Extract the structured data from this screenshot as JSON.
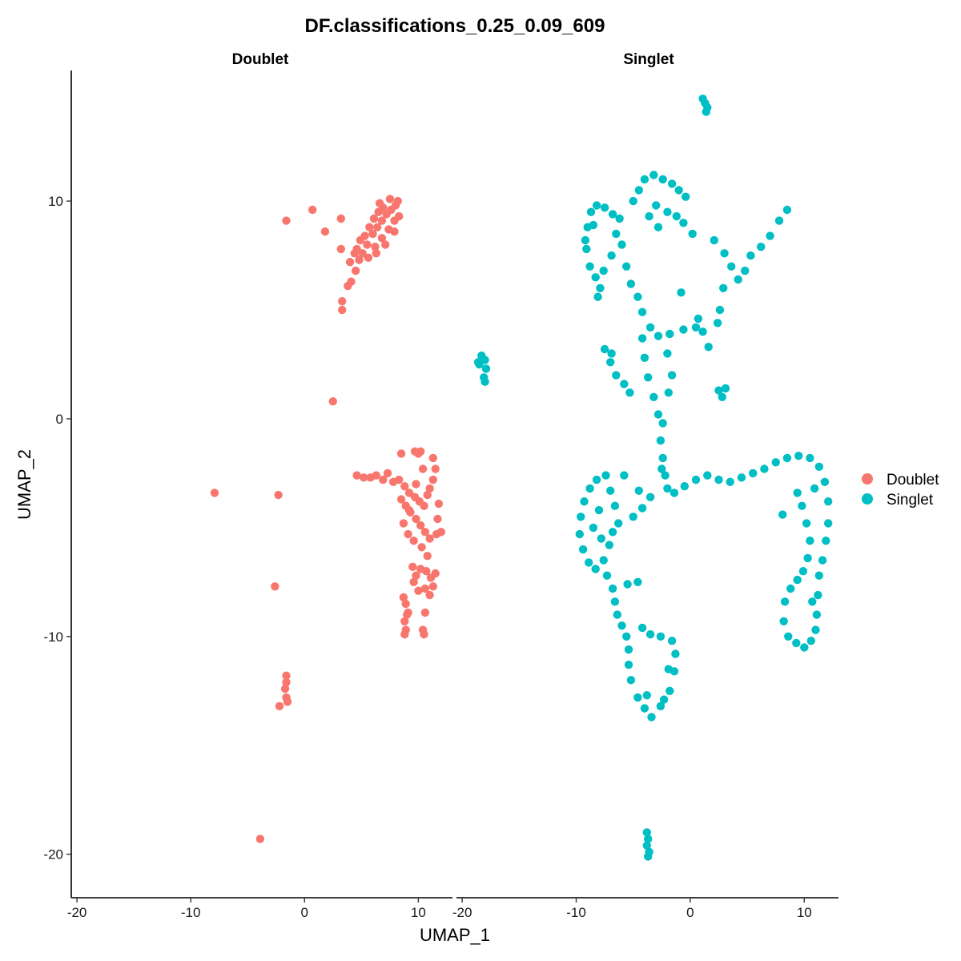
{
  "chart_data": {
    "type": "scatter",
    "title": "DF.classifications_0.25_0.09_609",
    "xlabel": "UMAP_1",
    "ylabel": "UMAP_2",
    "xlim": [
      -20.5,
      13
    ],
    "ylim": [
      -22,
      16
    ],
    "x_ticks": [
      -20,
      -10,
      0,
      10
    ],
    "y_ticks": [
      -20,
      -10,
      0,
      10
    ],
    "x_tick_labels": [
      "-20",
      "-10",
      "0",
      "10"
    ],
    "y_tick_labels": [
      "-20",
      "-10",
      "0",
      "10"
    ],
    "grid": false,
    "legend_position": "right",
    "facets": [
      "Doublet",
      "Singlet"
    ],
    "series": [
      {
        "name": "Doublet",
        "color": "#F8766D",
        "facet": "Doublet",
        "points": [
          [
            -3.9,
            -19.3
          ],
          [
            -7.9,
            -3.4
          ],
          [
            -2.3,
            -3.5
          ],
          [
            -2.6,
            -7.7
          ],
          [
            -1.6,
            -11.8
          ],
          [
            -1.6,
            -12.1
          ],
          [
            -1.7,
            -12.4
          ],
          [
            -1.6,
            -12.8
          ],
          [
            -1.5,
            -13.0
          ],
          [
            -2.2,
            -13.2
          ],
          [
            2.5,
            0.8
          ],
          [
            -1.6,
            9.1
          ],
          [
            0.7,
            9.6
          ],
          [
            1.8,
            8.6
          ],
          [
            3.2,
            9.2
          ],
          [
            3.2,
            7.8
          ],
          [
            3.3,
            5.4
          ],
          [
            3.3,
            5.0
          ],
          [
            3.8,
            6.1
          ],
          [
            4.1,
            6.3
          ],
          [
            4.5,
            6.8
          ],
          [
            4.8,
            7.3
          ],
          [
            5.1,
            7.6
          ],
          [
            5.5,
            8.0
          ],
          [
            6.0,
            8.5
          ],
          [
            6.4,
            8.8
          ],
          [
            6.8,
            9.1
          ],
          [
            7.2,
            9.4
          ],
          [
            7.6,
            9.6
          ],
          [
            8.0,
            9.8
          ],
          [
            8.2,
            10.0
          ],
          [
            5.3,
            8.4
          ],
          [
            5.7,
            8.8
          ],
          [
            6.1,
            9.2
          ],
          [
            6.5,
            9.5
          ],
          [
            6.9,
            9.7
          ],
          [
            5.6,
            7.4
          ],
          [
            6.2,
            7.9
          ],
          [
            6.8,
            8.3
          ],
          [
            7.4,
            8.7
          ],
          [
            7.9,
            9.1
          ],
          [
            4.6,
            7.8
          ],
          [
            4.9,
            8.2
          ],
          [
            4.0,
            7.2
          ],
          [
            4.4,
            7.6
          ],
          [
            6.6,
            9.9
          ],
          [
            7.5,
            10.1
          ],
          [
            8.3,
            9.3
          ],
          [
            7.9,
            8.6
          ],
          [
            7.1,
            8.0
          ],
          [
            6.3,
            7.6
          ],
          [
            4.6,
            -2.6
          ],
          [
            5.2,
            -2.7
          ],
          [
            5.8,
            -2.7
          ],
          [
            6.3,
            -2.6
          ],
          [
            6.9,
            -2.8
          ],
          [
            7.3,
            -2.5
          ],
          [
            7.8,
            -2.9
          ],
          [
            8.5,
            -1.6
          ],
          [
            9.7,
            -1.5
          ],
          [
            10.0,
            -1.6
          ],
          [
            10.2,
            -1.5
          ],
          [
            11.3,
            -1.8
          ],
          [
            11.5,
            -2.3
          ],
          [
            10.4,
            -2.3
          ],
          [
            8.3,
            -2.8
          ],
          [
            8.8,
            -3.1
          ],
          [
            9.2,
            -3.4
          ],
          [
            9.7,
            -3.6
          ],
          [
            10.1,
            -3.8
          ],
          [
            10.5,
            -4.0
          ],
          [
            11.0,
            -3.2
          ],
          [
            11.3,
            -2.8
          ],
          [
            8.5,
            -3.7
          ],
          [
            8.9,
            -4.0
          ],
          [
            9.3,
            -4.3
          ],
          [
            9.8,
            -4.6
          ],
          [
            10.2,
            -4.9
          ],
          [
            10.6,
            -5.2
          ],
          [
            11.0,
            -5.5
          ],
          [
            11.7,
            -4.6
          ],
          [
            8.7,
            -4.8
          ],
          [
            9.1,
            -5.3
          ],
          [
            9.6,
            -5.6
          ],
          [
            10.3,
            -5.9
          ],
          [
            10.8,
            -6.3
          ],
          [
            11.6,
            -5.3
          ],
          [
            11.8,
            -3.9
          ],
          [
            12.0,
            -5.2
          ],
          [
            9.5,
            -6.8
          ],
          [
            9.8,
            -7.2
          ],
          [
            10.2,
            -6.9
          ],
          [
            10.7,
            -7.0
          ],
          [
            11.1,
            -7.3
          ],
          [
            11.5,
            -7.1
          ],
          [
            10.6,
            -7.8
          ],
          [
            11.0,
            -8.1
          ],
          [
            9.6,
            -7.5
          ],
          [
            10.0,
            -7.9
          ],
          [
            11.3,
            -7.7
          ],
          [
            8.7,
            -8.2
          ],
          [
            8.9,
            -8.5
          ],
          [
            9.1,
            -8.9
          ],
          [
            8.8,
            -9.3
          ],
          [
            9.0,
            -9.0
          ],
          [
            10.6,
            -8.9
          ],
          [
            10.4,
            -9.7
          ],
          [
            8.9,
            -9.7
          ],
          [
            8.8,
            -9.9
          ],
          [
            10.5,
            -9.9
          ],
          [
            9.2,
            -4.2
          ],
          [
            9.8,
            -3.0
          ],
          [
            10.8,
            -3.5
          ]
        ]
      },
      {
        "name": "Singlet",
        "color": "#00BFC4",
        "facet": "Singlet",
        "points": [
          [
            1.1,
            14.7
          ],
          [
            1.3,
            14.5
          ],
          [
            1.5,
            14.3
          ],
          [
            1.4,
            14.1
          ],
          [
            -3.8,
            -19.0
          ],
          [
            -3.7,
            -19.3
          ],
          [
            -3.8,
            -19.6
          ],
          [
            -3.6,
            -19.9
          ],
          [
            -3.7,
            -20.1
          ],
          [
            -18.6,
            2.6
          ],
          [
            -18.3,
            2.9
          ],
          [
            -18.0,
            2.7
          ],
          [
            -17.9,
            2.3
          ],
          [
            -18.1,
            1.9
          ],
          [
            -18.0,
            1.7
          ],
          [
            -18.5,
            2.5
          ],
          [
            -9.0,
            8.8
          ],
          [
            -8.7,
            9.5
          ],
          [
            -8.2,
            9.8
          ],
          [
            -7.5,
            9.7
          ],
          [
            -6.8,
            9.4
          ],
          [
            -9.1,
            7.8
          ],
          [
            -8.8,
            7.0
          ],
          [
            -8.3,
            6.5
          ],
          [
            -7.9,
            6.0
          ],
          [
            -8.1,
            5.6
          ],
          [
            -7.6,
            6.8
          ],
          [
            -6.9,
            7.5
          ],
          [
            -6.5,
            8.5
          ],
          [
            -6.2,
            9.2
          ],
          [
            -9.2,
            8.2
          ],
          [
            -8.5,
            8.9
          ],
          [
            -4.0,
            11.0
          ],
          [
            -3.2,
            11.2
          ],
          [
            -2.4,
            11.0
          ],
          [
            -1.6,
            10.8
          ],
          [
            -1.0,
            10.5
          ],
          [
            -0.4,
            10.2
          ],
          [
            -4.5,
            10.5
          ],
          [
            -5.0,
            10.0
          ],
          [
            -2.0,
            9.5
          ],
          [
            -1.2,
            9.3
          ],
          [
            -3.0,
            9.8
          ],
          [
            -3.6,
            9.3
          ],
          [
            -2.8,
            8.8
          ],
          [
            -0.6,
            9.0
          ],
          [
            0.2,
            8.5
          ],
          [
            2.1,
            8.2
          ],
          [
            3.0,
            7.6
          ],
          [
            3.6,
            7.0
          ],
          [
            4.2,
            6.4
          ],
          [
            4.8,
            6.8
          ],
          [
            5.3,
            7.5
          ],
          [
            6.2,
            7.9
          ],
          [
            7.0,
            8.4
          ],
          [
            7.8,
            9.1
          ],
          [
            8.5,
            9.6
          ],
          [
            -6.0,
            8.0
          ],
          [
            -5.6,
            7.0
          ],
          [
            -5.2,
            6.2
          ],
          [
            -4.6,
            5.6
          ],
          [
            -4.2,
            4.9
          ],
          [
            -3.5,
            4.2
          ],
          [
            -2.8,
            3.8
          ],
          [
            -1.8,
            3.9
          ],
          [
            -0.6,
            4.1
          ],
          [
            0.5,
            4.2
          ],
          [
            1.1,
            4.0
          ],
          [
            1.6,
            3.3
          ],
          [
            2.6,
            5.0
          ],
          [
            2.9,
            6.0
          ],
          [
            2.4,
            4.4
          ],
          [
            0.7,
            4.6
          ],
          [
            -4.2,
            3.7
          ],
          [
            -4.0,
            2.8
          ],
          [
            -3.7,
            1.9
          ],
          [
            -3.2,
            1.0
          ],
          [
            -2.8,
            0.2
          ],
          [
            -7.5,
            3.2
          ],
          [
            -7.0,
            2.6
          ],
          [
            -6.5,
            2.0
          ],
          [
            -5.8,
            1.6
          ],
          [
            -5.3,
            1.2
          ],
          [
            -6.9,
            3.0
          ],
          [
            -2.0,
            3.0
          ],
          [
            -1.6,
            2.0
          ],
          [
            -1.9,
            1.2
          ],
          [
            -2.4,
            -0.2
          ],
          [
            -2.6,
            -1.0
          ],
          [
            -2.4,
            -1.8
          ],
          [
            -2.2,
            -2.6
          ],
          [
            -2.0,
            -3.2
          ],
          [
            -2.5,
            -2.3
          ],
          [
            2.5,
            1.3
          ],
          [
            2.8,
            1.0
          ],
          [
            3.1,
            1.4
          ],
          [
            -0.8,
            5.8
          ],
          [
            -1.4,
            -3.4
          ],
          [
            -0.5,
            -3.1
          ],
          [
            0.5,
            -2.8
          ],
          [
            1.5,
            -2.6
          ],
          [
            2.5,
            -2.8
          ],
          [
            3.5,
            -2.9
          ],
          [
            4.5,
            -2.7
          ],
          [
            5.5,
            -2.5
          ],
          [
            6.5,
            -2.3
          ],
          [
            7.5,
            -2.0
          ],
          [
            8.5,
            -1.8
          ],
          [
            9.5,
            -1.7
          ],
          [
            10.5,
            -1.8
          ],
          [
            11.3,
            -2.2
          ],
          [
            11.8,
            -2.9
          ],
          [
            12.1,
            -3.8
          ],
          [
            12.1,
            -4.8
          ],
          [
            11.9,
            -5.6
          ],
          [
            11.6,
            -6.5
          ],
          [
            11.3,
            -7.2
          ],
          [
            11.2,
            -8.1
          ],
          [
            11.1,
            -9.0
          ],
          [
            11.0,
            -9.7
          ],
          [
            10.6,
            -10.2
          ],
          [
            10.0,
            -10.5
          ],
          [
            9.3,
            -10.3
          ],
          [
            8.6,
            -10.0
          ],
          [
            8.2,
            -9.3
          ],
          [
            8.3,
            -8.4
          ],
          [
            8.8,
            -7.8
          ],
          [
            9.4,
            -7.4
          ],
          [
            9.9,
            -7.0
          ],
          [
            10.3,
            -6.4
          ],
          [
            10.5,
            -5.6
          ],
          [
            10.2,
            -4.8
          ],
          [
            9.8,
            -4.0
          ],
          [
            9.4,
            -3.4
          ],
          [
            8.1,
            -4.4
          ],
          [
            10.9,
            -3.2
          ],
          [
            10.7,
            -8.4
          ],
          [
            -9.6,
            -4.5
          ],
          [
            -9.3,
            -3.8
          ],
          [
            -8.8,
            -3.2
          ],
          [
            -8.2,
            -2.8
          ],
          [
            -7.4,
            -2.6
          ],
          [
            -7.0,
            -3.3
          ],
          [
            -6.6,
            -4.0
          ],
          [
            -6.3,
            -4.8
          ],
          [
            -9.7,
            -5.3
          ],
          [
            -9.4,
            -6.0
          ],
          [
            -8.9,
            -6.6
          ],
          [
            -8.3,
            -6.9
          ],
          [
            -7.6,
            -6.5
          ],
          [
            -7.1,
            -5.8
          ],
          [
            -6.8,
            -5.2
          ],
          [
            -8.5,
            -5.0
          ],
          [
            -8.0,
            -4.2
          ],
          [
            -7.8,
            -5.5
          ],
          [
            -7.3,
            -7.2
          ],
          [
            -6.8,
            -7.8
          ],
          [
            -6.6,
            -8.4
          ],
          [
            -6.4,
            -9.0
          ],
          [
            -5.5,
            -7.6
          ],
          [
            -4.6,
            -7.5
          ],
          [
            -5.8,
            -2.6
          ],
          [
            -4.5,
            -3.3
          ],
          [
            -3.5,
            -3.6
          ],
          [
            -5.0,
            -4.5
          ],
          [
            -4.2,
            -4.1
          ],
          [
            -6.0,
            -9.5
          ],
          [
            -5.6,
            -10.0
          ],
          [
            -5.4,
            -10.6
          ],
          [
            -5.4,
            -11.3
          ],
          [
            -5.2,
            -12.0
          ],
          [
            -4.6,
            -12.8
          ],
          [
            -4.0,
            -13.3
          ],
          [
            -3.4,
            -13.7
          ],
          [
            -2.6,
            -13.2
          ],
          [
            -1.8,
            -12.5
          ],
          [
            -1.4,
            -11.6
          ],
          [
            -1.3,
            -10.8
          ],
          [
            -1.6,
            -10.2
          ],
          [
            -2.6,
            -10.0
          ],
          [
            -3.5,
            -9.9
          ],
          [
            -4.2,
            -9.6
          ],
          [
            -1.9,
            -11.5
          ],
          [
            -2.3,
            -12.9
          ],
          [
            -3.8,
            -12.7
          ]
        ]
      }
    ]
  },
  "legend": {
    "items": [
      {
        "label": "Doublet",
        "color": "#F8766D"
      },
      {
        "label": "Singlet",
        "color": "#00BFC4"
      }
    ]
  }
}
